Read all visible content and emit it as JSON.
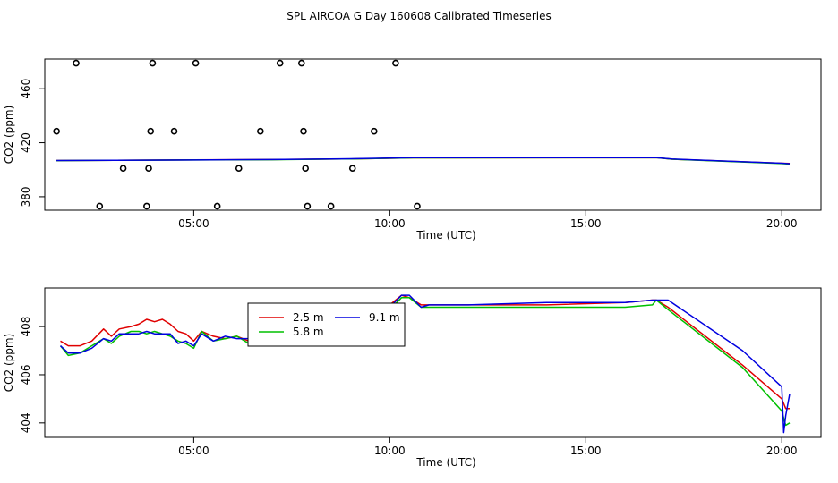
{
  "title": "SPL AIRCOA G  Day 160608  Calibrated Timeseries",
  "colors": {
    "2.5 m": "#e00000",
    "5.8 m": "#00c000",
    "9.1 m": "#0000e0",
    "points": "#000000"
  },
  "chart_data": [
    {
      "type": "scatter",
      "xlabel": "Time (UTC)",
      "ylabel": "CO2 (ppm)",
      "xlim": [
        1.2,
        21.0
      ],
      "ylim": [
        370,
        482
      ],
      "xticks": [
        {
          "v": 5,
          "label": "05:00"
        },
        {
          "v": 10,
          "label": "10:00"
        },
        {
          "v": 15,
          "label": "15:00"
        },
        {
          "v": 20,
          "label": "20:00"
        }
      ],
      "yticks": [
        {
          "v": 380,
          "label": "380"
        },
        {
          "v": 420,
          "label": "420"
        },
        {
          "v": 460,
          "label": "460"
        }
      ],
      "grid": false,
      "points": [
        {
          "x": 1.5,
          "y": 428.5
        },
        {
          "x": 2.0,
          "y": 479
        },
        {
          "x": 2.6,
          "y": 373
        },
        {
          "x": 3.2,
          "y": 401
        },
        {
          "x": 3.8,
          "y": 373
        },
        {
          "x": 3.85,
          "y": 401
        },
        {
          "x": 3.9,
          "y": 428.5
        },
        {
          "x": 3.95,
          "y": 479
        },
        {
          "x": 4.5,
          "y": 428.5
        },
        {
          "x": 5.05,
          "y": 479
        },
        {
          "x": 5.6,
          "y": 373
        },
        {
          "x": 6.15,
          "y": 401
        },
        {
          "x": 6.7,
          "y": 428.5
        },
        {
          "x": 7.2,
          "y": 479
        },
        {
          "x": 7.75,
          "y": 479
        },
        {
          "x": 7.8,
          "y": 428.5
        },
        {
          "x": 7.85,
          "y": 401
        },
        {
          "x": 7.9,
          "y": 373
        },
        {
          "x": 8.5,
          "y": 373
        },
        {
          "x": 9.05,
          "y": 401
        },
        {
          "x": 9.6,
          "y": 428.5
        },
        {
          "x": 10.15,
          "y": 479
        },
        {
          "x": 10.7,
          "y": 373
        }
      ],
      "series": [
        {
          "name": "2.5 m",
          "x": [
            1.5,
            3.0,
            5.0,
            7.0,
            9.0,
            10.6,
            11.0,
            16.8,
            17.2,
            20.0,
            20.2
          ],
          "y": [
            406.8,
            407.0,
            407.3,
            407.5,
            408.0,
            408.8,
            408.8,
            408.9,
            407.8,
            404.8,
            404.6
          ]
        },
        {
          "name": "5.8 m",
          "x": [
            1.5,
            3.0,
            5.0,
            7.0,
            9.0,
            10.6,
            11.0,
            16.8,
            17.2,
            20.0,
            20.2
          ],
          "y": [
            406.7,
            406.9,
            407.2,
            407.4,
            408.0,
            408.8,
            408.8,
            408.9,
            407.8,
            404.5,
            404.1
          ]
        },
        {
          "name": "9.1 m",
          "x": [
            1.5,
            3.0,
            5.0,
            7.0,
            9.0,
            10.6,
            11.0,
            16.8,
            17.2,
            20.0,
            20.2
          ],
          "y": [
            406.8,
            407.0,
            407.2,
            407.5,
            408.1,
            408.9,
            408.9,
            408.9,
            407.9,
            404.8,
            404.4
          ]
        }
      ]
    },
    {
      "type": "line",
      "xlabel": "Time (UTC)",
      "ylabel": "CO2 (ppm)",
      "xlim": [
        1.2,
        21.0
      ],
      "ylim": [
        403.4,
        409.6
      ],
      "xticks": [
        {
          "v": 5,
          "label": "05:00"
        },
        {
          "v": 10,
          "label": "10:00"
        },
        {
          "v": 15,
          "label": "15:00"
        },
        {
          "v": 20,
          "label": "20:00"
        }
      ],
      "yticks": [
        {
          "v": 404,
          "label": "404"
        },
        {
          "v": 406,
          "label": "406"
        },
        {
          "v": 408,
          "label": "408"
        }
      ],
      "grid": false,
      "legend": {
        "placement": "inside-top-left",
        "entries": [
          "2.5 m",
          "5.8 m",
          "9.1 m"
        ]
      },
      "series": [
        {
          "name": "2.5 m",
          "x": [
            1.6,
            1.8,
            2.1,
            2.4,
            2.7,
            2.9,
            3.1,
            3.4,
            3.6,
            3.8,
            4.0,
            4.2,
            4.4,
            4.6,
            4.8,
            5.0,
            5.2,
            5.5,
            5.8,
            6.1,
            6.4,
            6.7,
            7.0,
            7.3,
            7.6,
            7.9,
            8.2,
            8.5,
            8.8,
            9.1,
            9.4,
            9.7,
            10.0,
            10.3,
            10.5,
            10.8,
            11.0,
            12.0,
            14.0,
            16.0,
            16.7,
            16.8,
            17.1,
            19.0,
            20.0,
            20.1,
            20.2
          ],
          "y": [
            407.4,
            407.2,
            407.2,
            407.4,
            407.9,
            407.6,
            407.9,
            408.0,
            408.1,
            408.3,
            408.2,
            408.3,
            408.1,
            407.8,
            407.7,
            407.4,
            407.8,
            407.6,
            407.5,
            407.6,
            407.4,
            407.8,
            407.8,
            408.0,
            407.8,
            408.2,
            408.5,
            408.3,
            408.6,
            408.4,
            408.7,
            408.8,
            408.9,
            409.3,
            409.2,
            408.9,
            408.9,
            408.9,
            408.9,
            409.0,
            409.1,
            409.1,
            408.8,
            406.4,
            405.0,
            404.6,
            404.6
          ]
        },
        {
          "name": "5.8 m",
          "x": [
            1.6,
            1.8,
            2.1,
            2.4,
            2.7,
            2.9,
            3.1,
            3.4,
            3.6,
            3.8,
            4.0,
            4.2,
            4.4,
            4.6,
            4.8,
            5.0,
            5.2,
            5.5,
            5.8,
            6.1,
            6.4,
            6.7,
            7.0,
            7.3,
            7.6,
            7.9,
            8.2,
            8.5,
            8.8,
            9.1,
            9.4,
            9.7,
            10.0,
            10.3,
            10.5,
            10.8,
            11.0,
            12.0,
            14.0,
            16.0,
            16.7,
            16.8,
            17.1,
            19.0,
            20.0,
            20.1,
            20.2
          ],
          "y": [
            407.2,
            406.8,
            406.9,
            407.2,
            407.5,
            407.3,
            407.6,
            407.8,
            407.8,
            407.7,
            407.8,
            407.7,
            407.6,
            407.4,
            407.3,
            407.1,
            407.8,
            407.4,
            407.5,
            407.6,
            407.3,
            407.7,
            407.6,
            407.9,
            407.4,
            407.5,
            408.0,
            408.2,
            408.4,
            408.4,
            408.5,
            408.5,
            408.7,
            409.2,
            409.2,
            408.8,
            408.8,
            408.8,
            408.8,
            408.8,
            408.9,
            409.1,
            408.7,
            406.3,
            404.5,
            403.9,
            404.0
          ]
        },
        {
          "name": "9.1 m",
          "x": [
            1.6,
            1.8,
            2.1,
            2.4,
            2.7,
            2.9,
            3.1,
            3.4,
            3.6,
            3.8,
            4.0,
            4.2,
            4.4,
            4.6,
            4.8,
            5.0,
            5.2,
            5.5,
            5.8,
            6.1,
            6.4,
            6.7,
            7.0,
            7.3,
            7.6,
            7.9,
            8.2,
            8.5,
            8.8,
            9.1,
            9.4,
            9.7,
            10.0,
            10.3,
            10.5,
            10.8,
            11.0,
            12.0,
            14.0,
            16.0,
            16.7,
            16.8,
            17.1,
            19.0,
            20.0,
            20.05,
            20.1,
            20.2
          ],
          "y": [
            407.2,
            406.9,
            406.9,
            407.1,
            407.5,
            407.4,
            407.7,
            407.7,
            407.7,
            407.8,
            407.7,
            407.7,
            407.7,
            407.3,
            407.4,
            407.2,
            407.7,
            407.4,
            407.6,
            407.5,
            407.5,
            407.8,
            407.5,
            407.8,
            407.6,
            407.7,
            408.2,
            408.3,
            408.5,
            408.4,
            408.6,
            408.6,
            408.8,
            409.3,
            409.3,
            408.8,
            408.9,
            408.9,
            409.0,
            409.0,
            409.1,
            409.1,
            409.1,
            407.0,
            405.5,
            403.6,
            404.3,
            405.2
          ]
        }
      ]
    }
  ]
}
